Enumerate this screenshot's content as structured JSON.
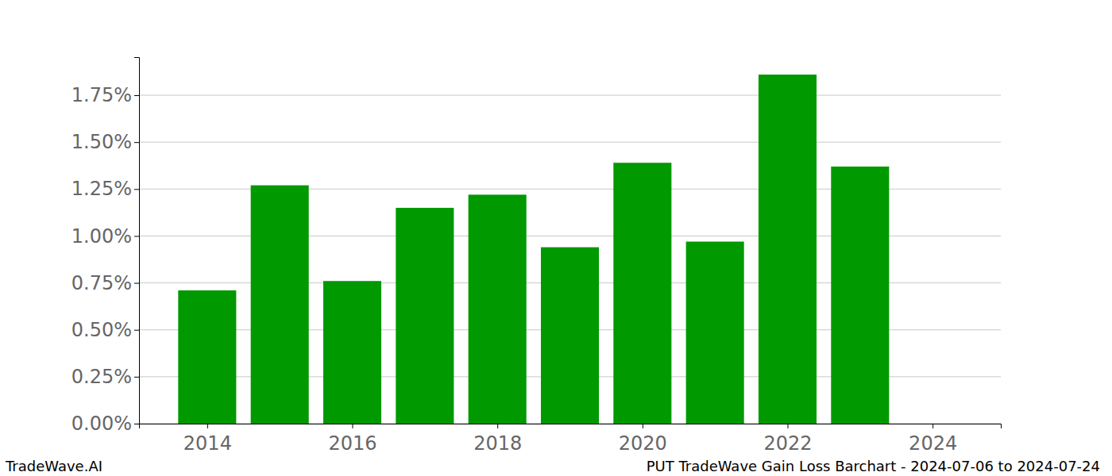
{
  "chart_data": {
    "type": "bar",
    "x": [
      2014,
      2015,
      2016,
      2017,
      2018,
      2019,
      2020,
      2021,
      2022,
      2023,
      2024
    ],
    "values": [
      0.71,
      1.27,
      0.76,
      1.15,
      1.22,
      0.94,
      1.39,
      0.97,
      1.86,
      1.37,
      0
    ],
    "color": "#009900",
    "xlim": [
      2013.06,
      2024.94
    ],
    "xticks": [
      2014,
      2016,
      2018,
      2020,
      2022,
      2024
    ],
    "ylim": [
      0,
      1.953
    ],
    "yticks": [
      {
        "value": 0,
        "label": "0.00%"
      },
      {
        "value": 0.25,
        "label": "0.25%"
      },
      {
        "value": 0.5,
        "label": "0.50%"
      },
      {
        "value": 0.75,
        "label": "0.75%"
      },
      {
        "value": 1.0,
        "label": "1.00%"
      },
      {
        "value": 1.25,
        "label": "1.25%"
      },
      {
        "value": 1.5,
        "label": "1.50%"
      },
      {
        "value": 1.75,
        "label": "1.75%"
      }
    ],
    "grid": true,
    "annotations": [
      "TradeWave.AI",
      "PUT TradeWave Gain Loss Barchart - 2024-07-06 to 2024-07-24"
    ]
  }
}
